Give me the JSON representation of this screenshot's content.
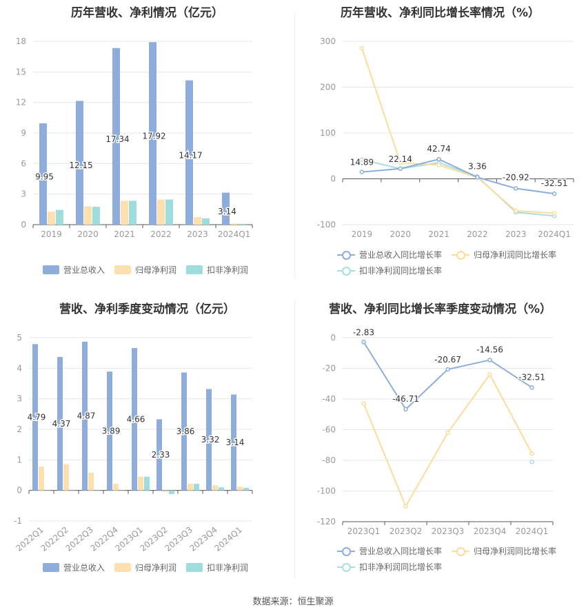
{
  "colors": {
    "revenue": "#8eaddc",
    "net_profit": "#fde0b0",
    "deducted_profit": "#9fdcdc",
    "revenue_line": "#8eaddc",
    "net_profit_line": "#fddc9a",
    "deducted_profit_line": "#a6dede",
    "grid": "#e6e6e6",
    "axis_text": "#999999"
  },
  "source": "数据来源：恒生聚源",
  "chart_data": [
    {
      "id": "annual_values",
      "type": "bar",
      "title": "历年营收、净利情况（亿元）",
      "categories": [
        "2019",
        "2020",
        "2021",
        "2022",
        "2023",
        "2024Q1"
      ],
      "series": [
        {
          "name": "营业总收入",
          "values": [
            9.95,
            12.15,
            17.34,
            17.92,
            14.17,
            3.14
          ],
          "labels": [
            "9.95",
            "12.15",
            "17.34",
            "17.92",
            "14.17",
            "3.14"
          ]
        },
        {
          "name": "归母净利润",
          "values": [
            1.28,
            1.8,
            2.35,
            2.47,
            0.75,
            0.12
          ]
        },
        {
          "name": "扣非净利润",
          "values": [
            1.45,
            1.75,
            2.35,
            2.47,
            0.62,
            0.09
          ]
        }
      ],
      "ylim": [
        0,
        18
      ],
      "yticks": [
        0,
        3,
        6,
        9,
        12,
        15,
        18
      ],
      "grid": true,
      "legend": "bottom"
    },
    {
      "id": "annual_growth",
      "type": "line",
      "title": "历年营收、净利同比增长率情况（%）",
      "categories": [
        "2019",
        "2020",
        "2021",
        "2022",
        "2023",
        "2024Q1"
      ],
      "series": [
        {
          "name": "营业总收入同比增长率",
          "values": [
            14.89,
            22.14,
            42.74,
            3.36,
            -20.92,
            -32.51
          ],
          "labels": [
            "14.89",
            "22.14",
            "42.74",
            "3.36",
            "-20.92",
            "-32.51"
          ]
        },
        {
          "name": "归母净利润同比增长率",
          "values": [
            285,
            35,
            30,
            3,
            -70,
            -75
          ]
        },
        {
          "name": "扣非净利润同比增长率",
          "values": [
            42,
            22,
            35,
            5,
            -73,
            -81
          ]
        }
      ],
      "ylim": [
        -100,
        300
      ],
      "yticks": [
        -100,
        0,
        100,
        200,
        300
      ],
      "grid": true,
      "legend": "bottom"
    },
    {
      "id": "quarterly_values",
      "type": "bar",
      "title": "营收、净利季度变动情况（亿元）",
      "categories": [
        "2022Q1",
        "2022Q2",
        "2022Q3",
        "2022Q4",
        "2023Q1",
        "2023Q2",
        "2023Q3",
        "2023Q4",
        "2024Q1"
      ],
      "series": [
        {
          "name": "营业总收入",
          "values": [
            4.79,
            4.37,
            4.87,
            3.89,
            4.66,
            2.33,
            3.86,
            3.32,
            3.14
          ],
          "labels": [
            "4.79",
            "4.37",
            "4.87",
            "3.89",
            "4.66",
            "2.33",
            "3.86",
            "3.32",
            "3.14"
          ]
        },
        {
          "name": "归母净利润",
          "values": [
            0.78,
            0.86,
            0.58,
            0.22,
            0.45,
            -0.05,
            0.22,
            0.17,
            0.12
          ]
        },
        {
          "name": "扣非净利润",
          "values": [
            0.0,
            0.0,
            0.0,
            0.0,
            0.45,
            -0.12,
            0.22,
            0.1,
            0.09
          ]
        }
      ],
      "ylim": [
        -1,
        5
      ],
      "yticks": [
        -1,
        0,
        1,
        2,
        3,
        4,
        5
      ],
      "grid": true,
      "legend": "bottom"
    },
    {
      "id": "quarterly_growth",
      "type": "line",
      "title": "营收、净利同比增长率季度变动情况（%）",
      "categories": [
        "2023Q1",
        "2023Q2",
        "2023Q3",
        "2023Q4",
        "2024Q1"
      ],
      "series": [
        {
          "name": "营业总收入同比增长率",
          "values": [
            -2.83,
            -46.71,
            -20.67,
            -14.56,
            -32.51
          ],
          "labels": [
            "-2.83",
            "-46.71",
            "-20.67",
            "-14.56",
            "-32.51"
          ]
        },
        {
          "name": "归母净利润同比增长率",
          "values": [
            -43,
            -110,
            -62,
            -24,
            -75.5
          ]
        },
        {
          "name": "扣非净利润同比增长率",
          "values": [
            null,
            null,
            null,
            null,
            -81
          ]
        }
      ],
      "ylim": [
        -120,
        0
      ],
      "yticks": [
        -120,
        -100,
        -80,
        -60,
        -40,
        -20,
        0
      ],
      "grid": true,
      "legend": "bottom"
    }
  ]
}
